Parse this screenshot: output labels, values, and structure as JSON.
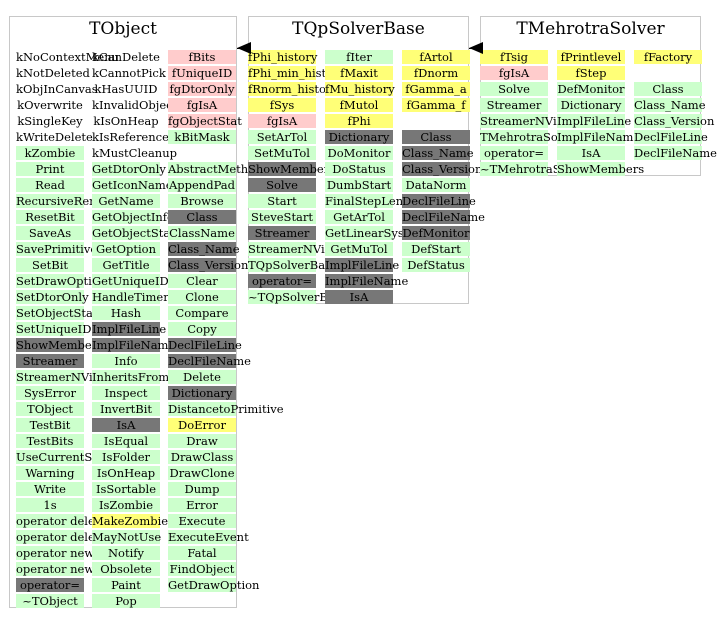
{
  "colors": {
    "green": "#ccffcc",
    "pink": "#ffcccc",
    "yellow": "#ffff77",
    "gray": "#777777",
    "border": "#c8c8c8"
  },
  "classes": [
    {
      "id": "tobject",
      "title": "TObject",
      "columns": [
        [
          {
            "t": "kNoContextMenu",
            "c": "white"
          },
          {
            "t": "kNotDeleted",
            "c": "white"
          },
          {
            "t": "kObjInCanvas",
            "c": "white"
          },
          {
            "t": "kOverwrite",
            "c": "white"
          },
          {
            "t": "kSingleKey",
            "c": "white"
          },
          {
            "t": "kWriteDelete",
            "c": "white"
          },
          {
            "t": "kZombie",
            "c": "green"
          },
          {
            "t": "Print",
            "c": "green"
          },
          {
            "t": "Read",
            "c": "green"
          },
          {
            "t": "RecursiveRemove",
            "c": "green"
          },
          {
            "t": "ResetBit",
            "c": "green"
          },
          {
            "t": "SaveAs",
            "c": "green"
          },
          {
            "t": "SavePrimitive",
            "c": "green"
          },
          {
            "t": "SetBit",
            "c": "green"
          },
          {
            "t": "SetDrawOption",
            "c": "green"
          },
          {
            "t": "SetDtorOnly",
            "c": "green"
          },
          {
            "t": "SetObjectStat",
            "c": "green"
          },
          {
            "t": "SetUniqueID",
            "c": "green"
          },
          {
            "t": "ShowMembers",
            "c": "gray"
          },
          {
            "t": "Streamer",
            "c": "gray"
          },
          {
            "t": "StreamerNVirtual",
            "c": "green"
          },
          {
            "t": "SysError",
            "c": "green"
          },
          {
            "t": "TObject",
            "c": "green"
          },
          {
            "t": "TestBit",
            "c": "green"
          },
          {
            "t": "TestBits",
            "c": "green"
          },
          {
            "t": "UseCurrentStyle",
            "c": "green"
          },
          {
            "t": "Warning",
            "c": "green"
          },
          {
            "t": "Write",
            "c": "green"
          },
          {
            "t": "1s",
            "c": "green"
          },
          {
            "t": "operator delete",
            "c": "green"
          },
          {
            "t": "operator delete[]",
            "c": "green"
          },
          {
            "t": "operator new",
            "c": "green"
          },
          {
            "t": "operator new[]",
            "c": "green"
          },
          {
            "t": "operator=",
            "c": "gray"
          },
          {
            "t": "~TObject",
            "c": "green"
          }
        ],
        [
          {
            "t": "kCanDelete",
            "c": "white"
          },
          {
            "t": "kCannotPick",
            "c": "white"
          },
          {
            "t": "kHasUUID",
            "c": "white"
          },
          {
            "t": "kInvalidObject",
            "c": "white"
          },
          {
            "t": "kIsOnHeap",
            "c": "white"
          },
          {
            "t": "kIsReferenced",
            "c": "white"
          },
          {
            "t": "kMustCleanup",
            "c": "white"
          },
          {
            "t": "GetDtorOnly",
            "c": "green"
          },
          {
            "t": "GetIconName",
            "c": "green"
          },
          {
            "t": "GetName",
            "c": "green"
          },
          {
            "t": "GetObjectInfo",
            "c": "green"
          },
          {
            "t": "GetObjectStat",
            "c": "green"
          },
          {
            "t": "GetOption",
            "c": "green"
          },
          {
            "t": "GetTitle",
            "c": "green"
          },
          {
            "t": "GetUniqueID",
            "c": "green"
          },
          {
            "t": "HandleTimer",
            "c": "green"
          },
          {
            "t": "Hash",
            "c": "green"
          },
          {
            "t": "ImplFileLine",
            "c": "gray"
          },
          {
            "t": "ImplFileName",
            "c": "gray"
          },
          {
            "t": "Info",
            "c": "green"
          },
          {
            "t": "InheritsFrom",
            "c": "green"
          },
          {
            "t": "Inspect",
            "c": "green"
          },
          {
            "t": "InvertBit",
            "c": "green"
          },
          {
            "t": "IsA",
            "c": "gray"
          },
          {
            "t": "IsEqual",
            "c": "green"
          },
          {
            "t": "IsFolder",
            "c": "green"
          },
          {
            "t": "IsOnHeap",
            "c": "green"
          },
          {
            "t": "IsSortable",
            "c": "green"
          },
          {
            "t": "IsZombie",
            "c": "green"
          },
          {
            "t": "MakeZombie",
            "c": "yellow"
          },
          {
            "t": "MayNotUse",
            "c": "green"
          },
          {
            "t": "Notify",
            "c": "green"
          },
          {
            "t": "Obsolete",
            "c": "green"
          },
          {
            "t": "Paint",
            "c": "green"
          },
          {
            "t": "Pop",
            "c": "green"
          }
        ],
        [
          {
            "t": "fBits",
            "c": "pink"
          },
          {
            "t": "fUniqueID",
            "c": "pink"
          },
          {
            "t": "fgDtorOnly",
            "c": "pink"
          },
          {
            "t": "fgIsA",
            "c": "pink"
          },
          {
            "t": "fgObjectStat",
            "c": "pink"
          },
          {
            "t": "kBitMask",
            "c": "green"
          },
          {
            "t": "",
            "c": "white"
          },
          {
            "t": "AbstractMethod",
            "c": "green"
          },
          {
            "t": "AppendPad",
            "c": "green"
          },
          {
            "t": "Browse",
            "c": "green"
          },
          {
            "t": "Class",
            "c": "gray"
          },
          {
            "t": "ClassName",
            "c": "green"
          },
          {
            "t": "Class_Name",
            "c": "gray"
          },
          {
            "t": "Class_Version",
            "c": "gray"
          },
          {
            "t": "Clear",
            "c": "green"
          },
          {
            "t": "Clone",
            "c": "green"
          },
          {
            "t": "Compare",
            "c": "green"
          },
          {
            "t": "Copy",
            "c": "green"
          },
          {
            "t": "DeclFileLine",
            "c": "gray"
          },
          {
            "t": "DeclFileName",
            "c": "gray"
          },
          {
            "t": "Delete",
            "c": "green"
          },
          {
            "t": "Dictionary",
            "c": "gray"
          },
          {
            "t": "DistancetoPrimitive",
            "c": "green"
          },
          {
            "t": "DoError",
            "c": "yellow"
          },
          {
            "t": "Draw",
            "c": "green"
          },
          {
            "t": "DrawClass",
            "c": "green"
          },
          {
            "t": "DrawClone",
            "c": "green"
          },
          {
            "t": "Dump",
            "c": "green"
          },
          {
            "t": "Error",
            "c": "green"
          },
          {
            "t": "Execute",
            "c": "green"
          },
          {
            "t": "ExecuteEvent",
            "c": "green"
          },
          {
            "t": "Fatal",
            "c": "green"
          },
          {
            "t": "FindObject",
            "c": "green"
          },
          {
            "t": "GetDrawOption",
            "c": "green"
          }
        ]
      ]
    },
    {
      "id": "tqpsolverbase",
      "title": "TQpSolverBase",
      "columns": [
        [
          {
            "t": "fPhi_history",
            "c": "yellow"
          },
          {
            "t": "fPhi_min_history",
            "c": "yellow"
          },
          {
            "t": "fRnorm_history",
            "c": "yellow"
          },
          {
            "t": "fSys",
            "c": "yellow"
          },
          {
            "t": "fgIsA",
            "c": "pink"
          },
          {
            "t": "SetArTol",
            "c": "green"
          },
          {
            "t": "SetMuTol",
            "c": "green"
          },
          {
            "t": "ShowMembers",
            "c": "gray"
          },
          {
            "t": "Solve",
            "c": "gray"
          },
          {
            "t": "Start",
            "c": "green"
          },
          {
            "t": "SteveStart",
            "c": "green"
          },
          {
            "t": "Streamer",
            "c": "gray"
          },
          {
            "t": "StreamerNVirtual",
            "c": "green"
          },
          {
            "t": "TQpSolverBase",
            "c": "green"
          },
          {
            "t": "operator=",
            "c": "gray"
          },
          {
            "t": "~TQpSolverBase",
            "c": "green"
          }
        ],
        [
          {
            "t": "fIter",
            "c": "green"
          },
          {
            "t": "fMaxit",
            "c": "yellow"
          },
          {
            "t": "fMu_history",
            "c": "yellow"
          },
          {
            "t": "fMutol",
            "c": "yellow"
          },
          {
            "t": "fPhi",
            "c": "yellow"
          },
          {
            "t": "Dictionary",
            "c": "gray"
          },
          {
            "t": "DoMonitor",
            "c": "green"
          },
          {
            "t": "DoStatus",
            "c": "green"
          },
          {
            "t": "DumbStart",
            "c": "green"
          },
          {
            "t": "FinalStepLength",
            "c": "green"
          },
          {
            "t": "GetArTol",
            "c": "green"
          },
          {
            "t": "GetLinearSystem",
            "c": "green"
          },
          {
            "t": "GetMuTol",
            "c": "green"
          },
          {
            "t": "ImplFileLine",
            "c": "gray"
          },
          {
            "t": "ImplFileName",
            "c": "gray"
          },
          {
            "t": "IsA",
            "c": "gray"
          }
        ],
        [
          {
            "t": "fArtol",
            "c": "yellow"
          },
          {
            "t": "fDnorm",
            "c": "yellow"
          },
          {
            "t": "fGamma_a",
            "c": "yellow"
          },
          {
            "t": "fGamma_f",
            "c": "yellow"
          },
          {
            "t": "",
            "c": "white"
          },
          {
            "t": "Class",
            "c": "gray"
          },
          {
            "t": "Class_Name",
            "c": "gray"
          },
          {
            "t": "Class_Version",
            "c": "gray"
          },
          {
            "t": "DataNorm",
            "c": "green"
          },
          {
            "t": "DeclFileLine",
            "c": "gray"
          },
          {
            "t": "DeclFileName",
            "c": "gray"
          },
          {
            "t": "DefMonitor",
            "c": "gray"
          },
          {
            "t": "DefStart",
            "c": "green"
          },
          {
            "t": "DefStatus",
            "c": "green"
          }
        ]
      ]
    },
    {
      "id": "tmehrotrasolver",
      "title": "TMehrotraSolver",
      "columns": [
        [
          {
            "t": "fTsig",
            "c": "yellow"
          },
          {
            "t": "fgIsA",
            "c": "pink"
          },
          {
            "t": "Solve",
            "c": "green"
          },
          {
            "t": "Streamer",
            "c": "green"
          },
          {
            "t": "StreamerNVirtual",
            "c": "green"
          },
          {
            "t": "TMehrotraSolver",
            "c": "green"
          },
          {
            "t": "operator=",
            "c": "green"
          },
          {
            "t": "~TMehrotraSolver",
            "c": "green"
          }
        ],
        [
          {
            "t": "fPrintlevel",
            "c": "yellow"
          },
          {
            "t": "fStep",
            "c": "yellow"
          },
          {
            "t": "DefMonitor",
            "c": "green"
          },
          {
            "t": "Dictionary",
            "c": "green"
          },
          {
            "t": "ImplFileLine",
            "c": "green"
          },
          {
            "t": "ImplFileName",
            "c": "green"
          },
          {
            "t": "IsA",
            "c": "green"
          },
          {
            "t": "ShowMembers",
            "c": "green"
          }
        ],
        [
          {
            "t": "fFactory",
            "c": "yellow"
          },
          {
            "t": "",
            "c": "white"
          },
          {
            "t": "Class",
            "c": "green"
          },
          {
            "t": "Class_Name",
            "c": "green"
          },
          {
            "t": "Class_Version",
            "c": "green"
          },
          {
            "t": "DeclFileLine",
            "c": "green"
          },
          {
            "t": "DeclFileName",
            "c": "green"
          }
        ]
      ]
    }
  ]
}
